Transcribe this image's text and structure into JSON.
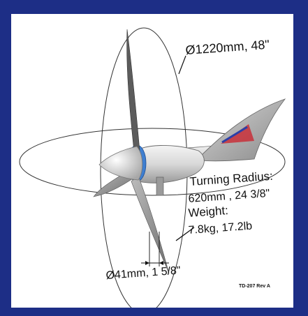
{
  "dimensions": {
    "rotor_diameter": "Ø1220mm, 48\"",
    "turning_radius_label": "Turning Radius:",
    "turning_radius_value": "620mm , 24 3/8\"",
    "weight_label": "Weight:",
    "weight_value": "7.8kg, 17.2lb",
    "mast_diameter": "Ø41mm, 1 5/8\""
  },
  "drawing_ref": "TD-207 Rev A",
  "colors": {
    "border": "#1d2e86",
    "background": "#ffffff",
    "nacelle_accent": "#3f7fd0"
  }
}
